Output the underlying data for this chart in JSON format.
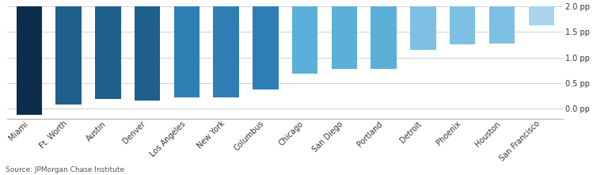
{
  "categories": [
    "San Francisco",
    "Houston",
    "Phoenix",
    "Detroit",
    "Portland",
    "San Diego",
    "Chicago",
    "Columbus",
    "New York",
    "Los Angeles",
    "Denver",
    "Austin",
    "Ft. Worth",
    "Miami"
  ],
  "values": [
    0.37,
    0.72,
    0.74,
    0.85,
    1.22,
    1.22,
    1.32,
    1.62,
    1.78,
    1.78,
    1.85,
    1.82,
    1.93,
    2.12
  ],
  "bar_colors": [
    "#aad4ec",
    "#7ec0e3",
    "#7ec0e3",
    "#7ec0e3",
    "#5ab0d8",
    "#5ab0d8",
    "#5ab0d8",
    "#2e7eb5",
    "#2e7eb5",
    "#2e7eb5",
    "#1f5f8b",
    "#1f5f8b",
    "#1f5f8b",
    "#0d2d4a"
  ],
  "ylim": [
    0,
    2.2
  ],
  "yticks": [
    0.0,
    0.5,
    1.0,
    1.5,
    2.0
  ],
  "ytick_labels": [
    "0.0 pp",
    "0.5 pp",
    "1.0 pp",
    "1.5 pp",
    "2.0 pp"
  ],
  "source": "Source: JPMorgan Chase Institute",
  "background_color": "#ffffff",
  "grid_color": "#cccccc",
  "tick_fontsize": 7.0,
  "source_fontsize": 6.5,
  "bar_width": 0.65
}
